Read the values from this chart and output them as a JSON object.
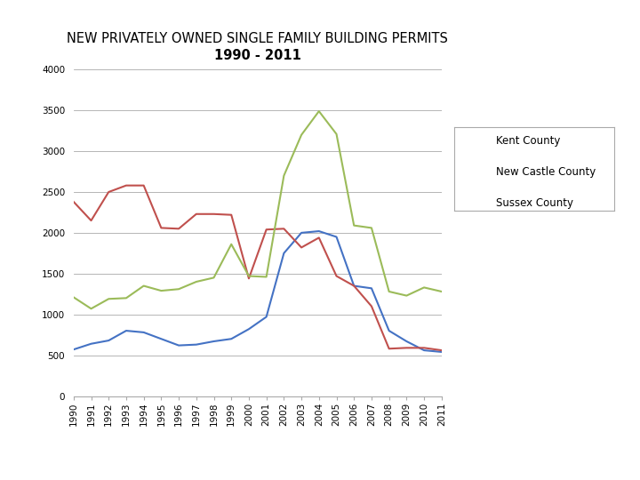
{
  "title_line1": "NEW PRIVATELY OWNED SINGLE FAMILY BUILDING PERMITS",
  "title_line2": "1990 - 2011",
  "years": [
    1990,
    1991,
    1992,
    1993,
    1994,
    1995,
    1996,
    1997,
    1998,
    1999,
    2000,
    2001,
    2002,
    2003,
    2004,
    2005,
    2006,
    2007,
    2008,
    2009,
    2010,
    2011
  ],
  "kent": [
    570,
    640,
    680,
    800,
    780,
    700,
    620,
    630,
    670,
    700,
    820,
    970,
    1750,
    2000,
    2020,
    1950,
    1350,
    1320,
    800,
    670,
    560,
    540
  ],
  "new_castle": [
    2380,
    2150,
    2500,
    2580,
    2580,
    2060,
    2050,
    2230,
    2230,
    2220,
    1440,
    2040,
    2050,
    1820,
    1940,
    1470,
    1350,
    1100,
    580,
    590,
    590,
    560
  ],
  "sussex": [
    1210,
    1070,
    1190,
    1200,
    1350,
    1290,
    1310,
    1400,
    1450,
    1860,
    1470,
    1460,
    2700,
    3200,
    3490,
    3210,
    2090,
    2060,
    1280,
    1230,
    1330,
    1280
  ],
  "kent_color": "#4472C4",
  "new_castle_color": "#C0504D",
  "sussex_color": "#9BBB59",
  "ylim": [
    0,
    4000
  ],
  "yticks": [
    0,
    500,
    1000,
    1500,
    2000,
    2500,
    3000,
    3500,
    4000
  ],
  "bg_color": "#FFFFFF",
  "header_dark": "#1F3864",
  "header_gray": "#808080",
  "title_fontsize": 10.5,
  "tick_fontsize": 7.5,
  "legend_labels": [
    "Kent County",
    "New Castle County",
    "Sussex County"
  ]
}
